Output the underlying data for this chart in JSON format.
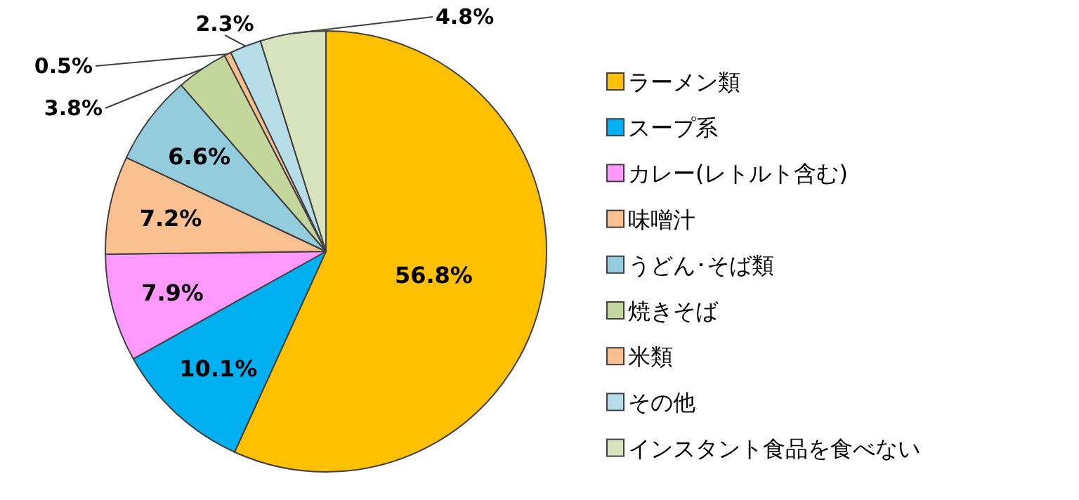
{
  "chart_data": {
    "type": "pie",
    "categories": [
      "ラーメン類",
      "スープ系",
      "カレー(レトルト含む)",
      "味噌汁",
      "うどん･そば類",
      "焼きそば",
      "米類",
      "その他",
      "インスタント食品を食べない"
    ],
    "values": [
      56.8,
      10.1,
      7.9,
      7.2,
      6.6,
      3.8,
      0.5,
      2.3,
      4.8
    ],
    "colors": [
      "#ffc000",
      "#00b0f0",
      "#ff99ff",
      "#fac090",
      "#93cddd",
      "#c3d69b",
      "#fabf8f",
      "#b7dee8",
      "#d7e4bd"
    ],
    "value_labels": [
      "56.8%",
      "10.1%",
      "7.9%",
      "7.2%",
      "6.6%",
      "3.8%",
      "0.5%",
      "2.3%",
      "4.8%"
    ],
    "legend": "right"
  }
}
